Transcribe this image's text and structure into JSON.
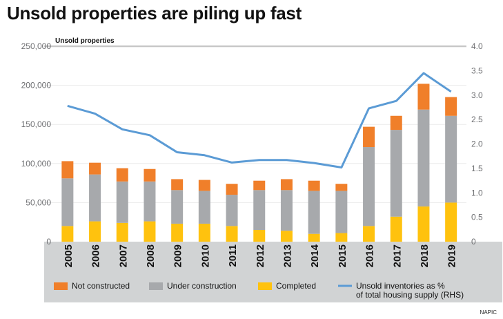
{
  "chart_data": {
    "type": "bar",
    "title": "Unsold properties are piling up fast",
    "subtitle": "Unsold properties",
    "categories": [
      "2005",
      "2006",
      "2007",
      "2008",
      "2009",
      "2010",
      "2011",
      "2012",
      "2013",
      "2014",
      "2015",
      "2016",
      "2017",
      "2018",
      "2019"
    ],
    "series": [
      {
        "name": "Completed",
        "type": "bar",
        "stack": "units",
        "color": "#FFC20E",
        "values": [
          20000,
          26000,
          24000,
          26000,
          23000,
          23000,
          20000,
          15000,
          14000,
          10000,
          11000,
          20000,
          32000,
          45000,
          50000
        ]
      },
      {
        "name": "Under construction",
        "type": "bar",
        "stack": "units",
        "color": "#A7A9AC",
        "values": [
          61000,
          60000,
          53000,
          51000,
          43000,
          42000,
          40000,
          51000,
          52000,
          55000,
          54000,
          101000,
          111000,
          124000,
          111000
        ]
      },
      {
        "name": "Not constructed",
        "type": "bar",
        "stack": "units",
        "color": "#F07F2A",
        "values": [
          22000,
          15000,
          17000,
          16000,
          14000,
          14000,
          14000,
          12000,
          14000,
          13000,
          9000,
          26000,
          18000,
          33000,
          24000
        ]
      },
      {
        "name": "Unsold inventories as % of total housing supply (RHS)",
        "type": "line",
        "axis": "right",
        "color": "#5B9BD5",
        "values": [
          2.78,
          2.62,
          2.3,
          2.18,
          1.83,
          1.77,
          1.62,
          1.67,
          1.67,
          1.61,
          1.52,
          2.73,
          2.88,
          3.45,
          3.07
        ]
      }
    ],
    "ylim": [
      0,
      250000
    ],
    "yticks": [
      "250,000",
      "200,000",
      "150,000",
      "100,000",
      "50,000",
      "0"
    ],
    "y2lim": [
      0,
      4.0
    ],
    "y2ticks": [
      "4.0",
      "3.5",
      "3.0",
      "2.5",
      "2.0",
      "1.5",
      "1.0",
      "0.5",
      "0"
    ],
    "legend": {
      "position": "bottom",
      "items": [
        {
          "label": "Not constructed",
          "color": "#F07F2A",
          "kind": "box"
        },
        {
          "label": "Under construction",
          "color": "#A7A9AC",
          "kind": "box"
        },
        {
          "label": "Completed",
          "color": "#FFC20E",
          "kind": "box"
        },
        {
          "label": "Unsold inventories as %",
          "label2": "of total housing supply (RHS)",
          "color": "#5B9BD5",
          "kind": "line"
        }
      ]
    },
    "source": "NAPIC"
  }
}
